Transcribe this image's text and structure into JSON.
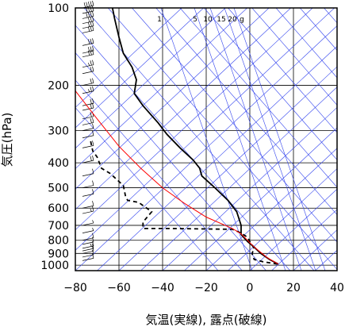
{
  "chart_data": {
    "type": "line",
    "title": "",
    "xlabel": "気温(実線), 露点(破線)",
    "ylabel": "気圧(hPa)",
    "xlim": [
      -80,
      40
    ],
    "ylim": [
      1050,
      100
    ],
    "yscale": "log",
    "xticks": [
      -80,
      -60,
      -40,
      -20,
      0,
      20,
      40
    ],
    "yticks": [
      100,
      200,
      300,
      400,
      500,
      600,
      700,
      800,
      900,
      1000
    ],
    "mixing_ratio_labels": [
      "1",
      "5",
      "10",
      "15",
      "20",
      "g"
    ],
    "series": [
      {
        "style": "solid",
        "color": "#000000",
        "points": [
          [
            -63,
            100
          ],
          [
            -62,
            110
          ],
          [
            -60,
            130
          ],
          [
            -58,
            150
          ],
          [
            -54,
            170
          ],
          [
            -52,
            190
          ],
          [
            -53,
            215
          ],
          [
            -49,
            240
          ],
          [
            -42,
            280
          ],
          [
            -38,
            310
          ],
          [
            -32,
            350
          ],
          [
            -26,
            390
          ],
          [
            -23,
            420
          ],
          [
            -22,
            450
          ],
          [
            -16,
            500
          ],
          [
            -10,
            560
          ],
          [
            -6,
            620
          ],
          [
            -4,
            700
          ],
          [
            -4,
            760
          ],
          [
            -1,
            810
          ],
          [
            2,
            850
          ],
          [
            5,
            900
          ],
          [
            9,
            950
          ],
          [
            13,
            990
          ]
        ]
      },
      {
        "style": "dashed",
        "color": "#000000",
        "points": [
          [
            -73,
            330
          ],
          [
            -72,
            360
          ],
          [
            -70,
            380
          ],
          [
            -69,
            400
          ],
          [
            -68,
            420
          ],
          [
            -64,
            440
          ],
          [
            -58,
            490
          ],
          [
            -57,
            540
          ],
          [
            -56,
            560
          ],
          [
            -51,
            570
          ],
          [
            -45,
            620
          ],
          [
            -49,
            680
          ],
          [
            -49,
            720
          ],
          [
            -36,
            720
          ],
          [
            -8,
            725
          ],
          [
            -4,
            750
          ],
          [
            -1,
            780
          ],
          [
            0,
            810
          ],
          [
            2,
            860
          ],
          [
            1,
            900
          ],
          [
            2,
            950
          ],
          [
            6,
            970
          ],
          [
            13,
            990
          ]
        ]
      },
      {
        "style": "solid",
        "color": "#ff0000",
        "points": [
          [
            -80,
            210
          ],
          [
            -70,
            270
          ],
          [
            -60,
            345
          ],
          [
            -50,
            420
          ],
          [
            -40,
            500
          ],
          [
            -30,
            575
          ],
          [
            -20,
            650
          ],
          [
            -8,
            720
          ],
          [
            -4,
            755
          ],
          [
            2,
            850
          ],
          [
            8,
            935
          ],
          [
            13,
            990
          ]
        ]
      }
    ],
    "wind_barbs": [
      {
        "p": 100,
        "barbs": [
          10,
          10,
          10,
          10,
          10
        ]
      },
      {
        "p": 105,
        "barbs": [
          10,
          10,
          10,
          10
        ]
      },
      {
        "p": 110,
        "barbs": [
          10,
          10,
          10,
          10
        ]
      },
      {
        "p": 115,
        "barbs": [
          10,
          10,
          10
        ]
      },
      {
        "p": 120,
        "barbs": [
          10,
          10,
          10
        ]
      },
      {
        "p": 125,
        "barbs": [
          10,
          10,
          10
        ]
      },
      {
        "p": 140,
        "barbs": [
          10,
          10,
          10
        ]
      },
      {
        "p": 150,
        "barbs": [
          10,
          10,
          10
        ]
      },
      {
        "p": 155,
        "barbs": [
          10,
          10,
          10
        ]
      },
      {
        "p": 170,
        "barbs": [
          10,
          10,
          5
        ]
      },
      {
        "p": 180,
        "barbs": [
          10,
          10
        ]
      },
      {
        "p": 200,
        "barbs": [
          10,
          10
        ]
      },
      {
        "p": 215,
        "barbs": [
          10,
          10,
          5
        ]
      },
      {
        "p": 240,
        "barbs": [
          10,
          10
        ]
      },
      {
        "p": 250,
        "barbs": [
          10,
          10
        ]
      },
      {
        "p": 270,
        "barbs": [
          10,
          10
        ]
      },
      {
        "p": 285,
        "barbs": [
          10,
          10
        ]
      },
      {
        "p": 300,
        "barbs": [
          10
        ]
      },
      {
        "p": 320,
        "barbs": [
          10
        ]
      },
      {
        "p": 350,
        "barbs": [
          10
        ]
      },
      {
        "p": 400,
        "barbs": [
          10,
          10
        ]
      },
      {
        "p": 450,
        "barbs": [
          10
        ]
      },
      {
        "p": 500,
        "barbs": [
          10
        ]
      },
      {
        "p": 540,
        "barbs": [
          10
        ]
      },
      {
        "p": 600,
        "barbs": [
          10
        ]
      },
      {
        "p": 630,
        "barbs": [
          10,
          5
        ]
      },
      {
        "p": 700,
        "barbs": [
          5
        ]
      },
      {
        "p": 750,
        "barbs": [
          5
        ]
      },
      {
        "p": 800,
        "barbs": [
          10
        ]
      },
      {
        "p": 830,
        "barbs": [
          10
        ]
      },
      {
        "p": 860,
        "barbs": [
          10,
          5
        ]
      },
      {
        "p": 880,
        "barbs": [
          10
        ]
      },
      {
        "p": 900,
        "barbs": [
          10
        ]
      },
      {
        "p": 930,
        "barbs": [
          10
        ]
      },
      {
        "p": 960,
        "barbs": [
          10
        ]
      }
    ]
  }
}
